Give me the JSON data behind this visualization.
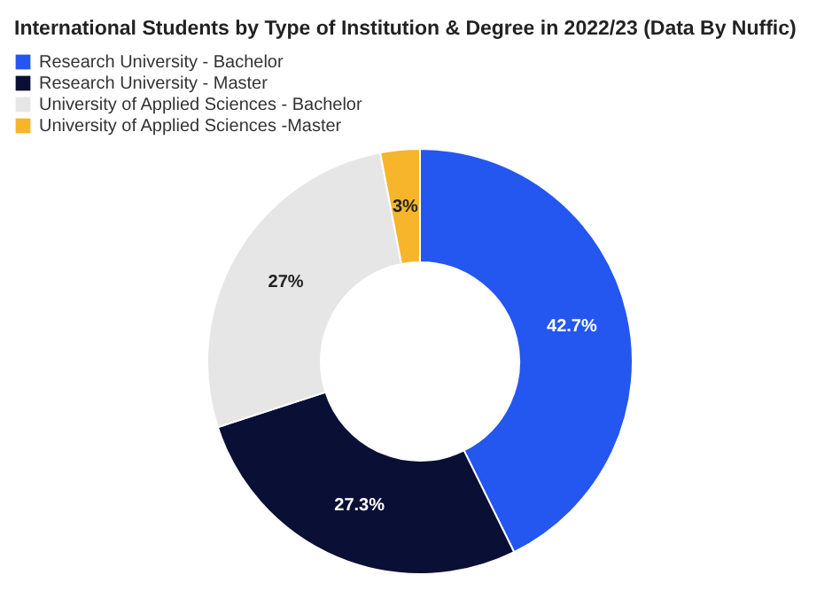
{
  "chart_data": {
    "type": "donut",
    "title": "International Students by Type of Institution & Degree in 2022/23 (Data By Nuffic)",
    "categories": [
      "Research University - Bachelor",
      "Research University - Master",
      "University of Applied Sciences - Bachelor",
      "University of Applied Sciences -Master"
    ],
    "values": [
      42.7,
      27.3,
      27,
      3
    ],
    "colors": [
      "#2456f0",
      "#0a0f35",
      "#e6e6e6",
      "#f7b52c"
    ],
    "value_labels": [
      "42.7%",
      "27.3%",
      "27%",
      "3%"
    ],
    "legend": "top left"
  }
}
